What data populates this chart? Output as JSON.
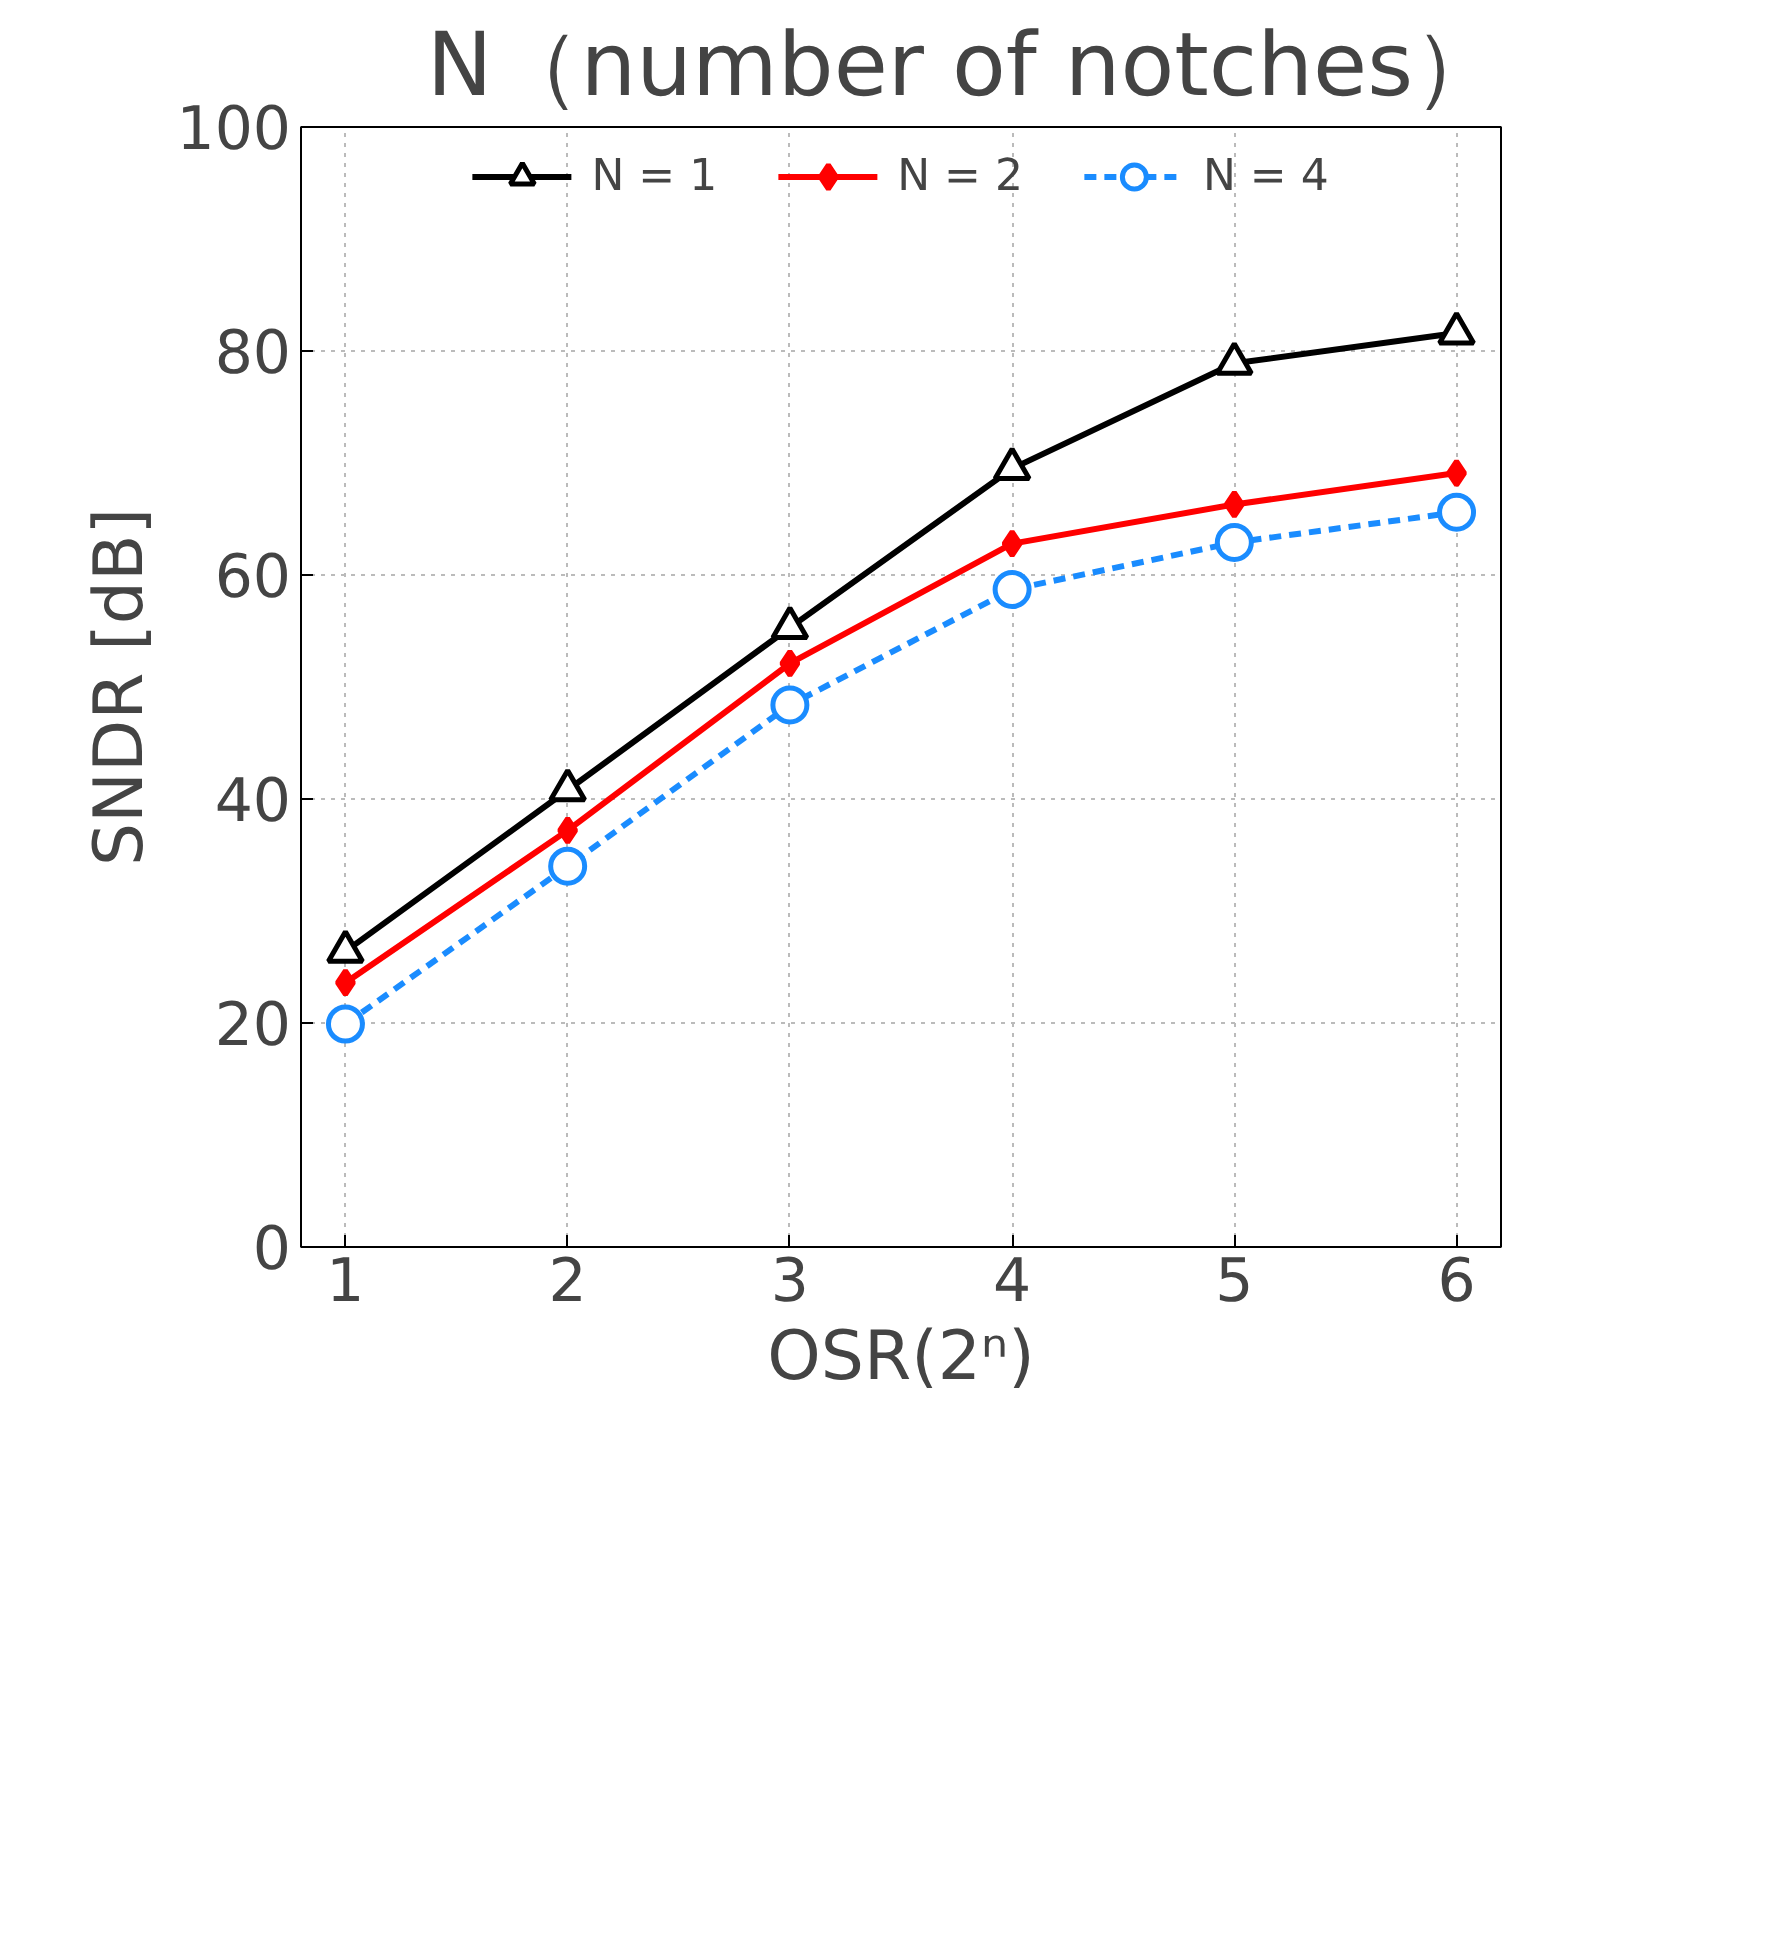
{
  "chart_data": {
    "type": "line",
    "title": "N（number of notches）",
    "xlabel": "OSR(2ⁿ)",
    "ylabel": "SNDR [dB]",
    "x": [
      1,
      2,
      3,
      4,
      5,
      6
    ],
    "series": [
      {
        "name": "N = 1",
        "color": "#000000",
        "marker": "triangle",
        "line_style": "solid",
        "values": [
          26.4,
          40.8,
          55.3,
          69.5,
          78.9,
          81.6
        ]
      },
      {
        "name": "N = 2",
        "color": "#ff0000",
        "marker": "diamond",
        "line_style": "solid",
        "values": [
          23.6,
          37.2,
          52.1,
          62.8,
          66.3,
          69.1
        ]
      },
      {
        "name": "N = 4",
        "color": "#1a8cff",
        "marker": "circle",
        "line_style": "dashed",
        "values": [
          19.9,
          34.0,
          48.4,
          58.7,
          62.9,
          65.6
        ]
      }
    ],
    "xlim": [
      0.8,
      6.2
    ],
    "xticks": [
      1,
      2,
      3,
      4,
      5,
      6
    ],
    "ylim": [
      0,
      100
    ],
    "yticks": [
      0,
      20,
      40,
      60,
      80,
      100
    ],
    "grid": true,
    "legend": "top"
  }
}
